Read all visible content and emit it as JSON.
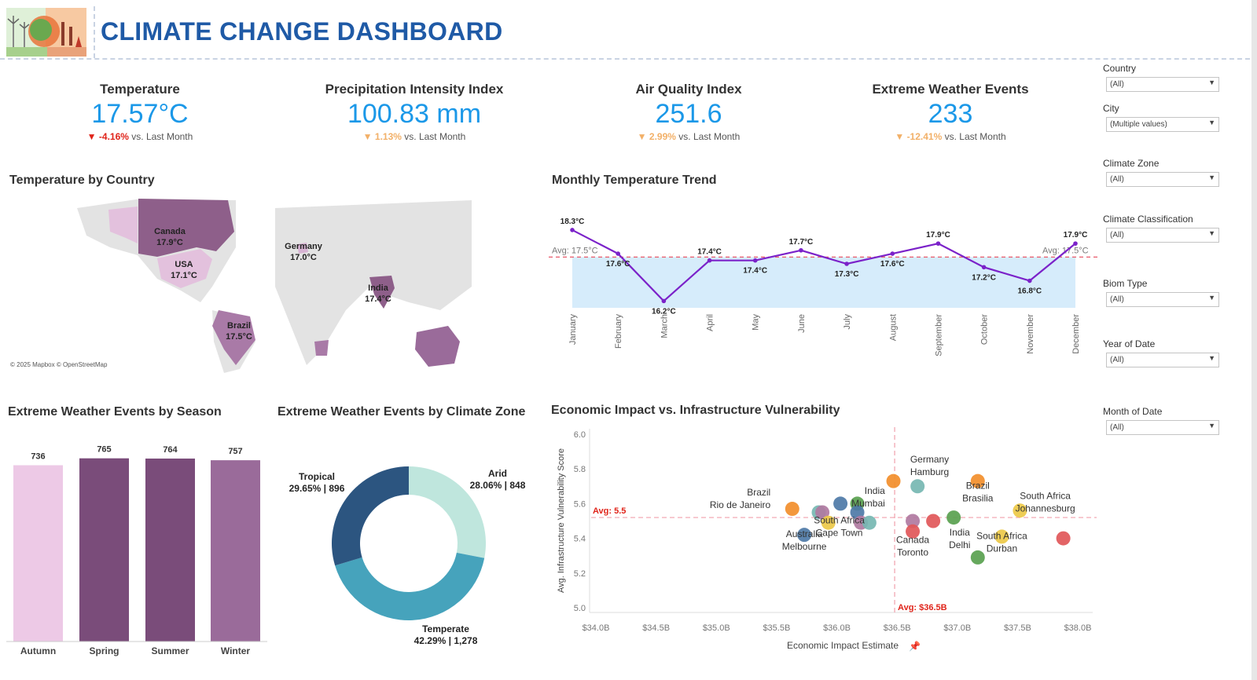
{
  "header": {
    "title": "CLIMATE CHANGE DASHBOARD"
  },
  "kpis": [
    {
      "label": "Temperature",
      "value": "17.57°C",
      "delta": "-4.16%",
      "delta_color": "#e0241a",
      "suffix": "vs. Last Month"
    },
    {
      "label": "Precipitation Intensity Index",
      "value": "100.83 mm",
      "delta": "1.13%",
      "delta_color": "#f2b068",
      "suffix": "vs. Last Month"
    },
    {
      "label": "Air Quality Index",
      "value": "251.6",
      "delta": "2.99%",
      "delta_color": "#f2b068",
      "suffix": "vs. Last Month"
    },
    {
      "label": "Extreme Weather Events",
      "value": "233",
      "delta": "-12.41%",
      "delta_color": "#f2b068",
      "suffix": "vs. Last Month"
    }
  ],
  "map": {
    "title": "Temperature by Country",
    "attribution": "© 2025 Mapbox © OpenStreetMap",
    "labels": [
      {
        "country": "Canada",
        "temp": "17.9°C"
      },
      {
        "country": "USA",
        "temp": "17.1°C"
      },
      {
        "country": "Germany",
        "temp": "17.0°C"
      },
      {
        "country": "India",
        "temp": "17.4°C"
      },
      {
        "country": "Brazil",
        "temp": "17.5°C"
      }
    ]
  },
  "trend": {
    "title": "Monthly Temperature Trend",
    "avg_label": "Avg: 17.5°C",
    "chart_data": {
      "type": "line",
      "x": [
        "January",
        "February",
        "March",
        "April",
        "May",
        "June",
        "July",
        "August",
        "September",
        "October",
        "November",
        "December"
      ],
      "values": [
        18.3,
        17.6,
        16.2,
        17.4,
        17.4,
        17.7,
        17.3,
        17.6,
        17.9,
        17.2,
        16.8,
        17.9
      ],
      "value_labels": [
        "18.3°C",
        "17.6°C",
        "16.2°C",
        "17.4°C",
        "17.4°C",
        "17.7°C",
        "17.3°C",
        "17.6°C",
        "17.9°C",
        "17.2°C",
        "16.8°C",
        "17.9°C"
      ],
      "reference_line": 17.5,
      "line_color": "#7b22c9",
      "area_color": "#d6ecfb"
    }
  },
  "season": {
    "title": "Extreme Weather Events by Season",
    "chart_data": {
      "type": "bar",
      "categories": [
        "Autumn",
        "Spring",
        "Summer",
        "Winter"
      ],
      "values": [
        736,
        765,
        764,
        757
      ],
      "colors": [
        "#edc9e6",
        "#7a4c7a",
        "#7a4c7a",
        "#9a6b9a"
      ]
    }
  },
  "zone": {
    "title": "Extreme Weather Events by Climate Zone",
    "chart_data": {
      "type": "pie",
      "slices": [
        {
          "name": "Arid",
          "label": "28.06% | 848",
          "value": 848,
          "color": "#bfe6dd"
        },
        {
          "name": "Temperate",
          "label": "42.29% | 1,278",
          "value": 1278,
          "color": "#46a3bc"
        },
        {
          "name": "Tropical",
          "label": "29.65% | 896",
          "value": 896,
          "color": "#2c5580"
        }
      ]
    }
  },
  "scatter": {
    "title": "Economic Impact vs. Infrastructure Vulnerability",
    "xlabel": "Economic Impact Estimate",
    "ylabel": "Avg. Infrastructure Vulnerability Score",
    "avg_y_label": "Avg: 5.5",
    "avg_x_label": "Avg: $36.5B",
    "chart_data": {
      "type": "scatter",
      "xlim": [
        34.0,
        38.0
      ],
      "ylim": [
        5.0,
        6.0
      ],
      "x_ticks": [
        "$34.0B",
        "$34.5B",
        "$35.0B",
        "$35.5B",
        "$36.0B",
        "$36.5B",
        "$37.0B",
        "$37.5B",
        "$38.0B"
      ],
      "y_ticks": [
        "6.0",
        "5.8",
        "5.6",
        "5.4",
        "5.2",
        "5.0"
      ],
      "avg_x": 36.48,
      "avg_y": 5.52,
      "points": [
        {
          "x": 35.63,
          "y": 5.57,
          "color": "#f28e2b"
        },
        {
          "x": 35.85,
          "y": 5.55,
          "color": "#76b7b2"
        },
        {
          "x": 35.88,
          "y": 5.55,
          "color": "#b07aa1"
        },
        {
          "x": 35.93,
          "y": 5.49,
          "color": "#edc948"
        },
        {
          "x": 35.73,
          "y": 5.42,
          "color": "#4e79a7"
        },
        {
          "x": 36.03,
          "y": 5.6,
          "color": "#4e79a7"
        },
        {
          "x": 36.17,
          "y": 5.6,
          "color": "#59a14f"
        },
        {
          "x": 36.17,
          "y": 5.55,
          "color": "#4e79a7"
        },
        {
          "x": 36.2,
          "y": 5.49,
          "color": "#b07aa1"
        },
        {
          "x": 36.27,
          "y": 5.49,
          "color": "#76b7b2"
        },
        {
          "x": 36.47,
          "y": 5.73,
          "color": "#f28e2b"
        },
        {
          "x": 36.67,
          "y": 5.7,
          "color": "#76b7b2"
        },
        {
          "x": 36.63,
          "y": 5.5,
          "color": "#b07aa1"
        },
        {
          "x": 36.63,
          "y": 5.44,
          "color": "#e15759"
        },
        {
          "x": 36.8,
          "y": 5.5,
          "color": "#e15759"
        },
        {
          "x": 36.97,
          "y": 5.52,
          "color": "#59a14f"
        },
        {
          "x": 37.17,
          "y": 5.73,
          "color": "#f28e2b"
        },
        {
          "x": 37.17,
          "y": 5.29,
          "color": "#59a14f"
        },
        {
          "x": 37.37,
          "y": 5.41,
          "color": "#edc948"
        },
        {
          "x": 37.52,
          "y": 5.56,
          "color": "#edc948"
        },
        {
          "x": 37.88,
          "y": 5.4,
          "color": "#e15759"
        }
      ],
      "annotations": [
        {
          "line1": "Brazil",
          "line2": "Rio de Janeiro"
        },
        {
          "line1": "Australia",
          "line2": "Melbourne"
        },
        {
          "line1": "South Africa",
          "line2": "Cape Town"
        },
        {
          "line1": "India",
          "line2": "Mumbai"
        },
        {
          "line1": "Germany",
          "line2": "Hamburg"
        },
        {
          "line1": "Canada",
          "line2": "Toronto"
        },
        {
          "line1": "India",
          "line2": "Delhi"
        },
        {
          "line1": "Brazil",
          "line2": "Brasilia"
        },
        {
          "line1": "South Africa",
          "line2": "Durban"
        },
        {
          "line1": "South Africa",
          "line2": "Johannesburg"
        }
      ]
    }
  },
  "filters": [
    {
      "label": "Country",
      "value": "(All)"
    },
    {
      "label": "City",
      "value": "(Multiple values)"
    },
    {
      "label": "Climate Zone",
      "value": "(All)"
    },
    {
      "label": "Climate Classification",
      "value": "(All)"
    },
    {
      "label": "Biom Type",
      "value": "(All)"
    },
    {
      "label": "Year of Date",
      "value": "(All)"
    },
    {
      "label": "Month of Date",
      "value": "(All)"
    }
  ]
}
